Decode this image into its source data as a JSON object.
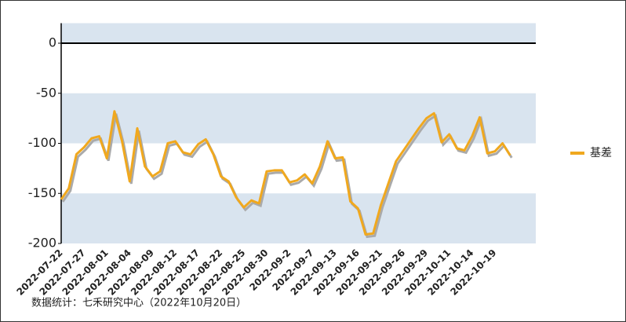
{
  "chart_data": {
    "type": "line",
    "footer": "数据统计：七禾研究中心（2022年10月20日）",
    "categories": [
      "2022-07-22",
      null,
      null,
      "2022-07-27",
      null,
      null,
      "2022-08-01",
      null,
      null,
      "2022-08-04",
      null,
      null,
      "2022-08-09",
      null,
      null,
      "2022-08-12",
      null,
      null,
      "2022-08-17",
      null,
      null,
      "2022-08-22",
      null,
      null,
      "2022-08-25",
      null,
      null,
      "2022-08-30",
      null,
      null,
      "2022-09-2",
      null,
      null,
      "2022-09-7",
      null,
      null,
      "2022-09-13",
      null,
      null,
      "2022-09-16",
      null,
      null,
      "2022-09-21",
      null,
      null,
      "2022-09-26",
      null,
      null,
      "2022-09-29",
      null,
      null,
      "2022-10-11",
      null,
      null,
      "2022-10-14",
      null,
      null,
      "2022-10-19",
      null,
      null
    ],
    "series": [
      {
        "name": "基差",
        "color": "#f0a81e",
        "values": [
          -156,
          -145,
          -111,
          -104,
          -95,
          -93,
          -115,
          -68,
          -98,
          -138,
          -85,
          -123,
          -133,
          -128,
          -100,
          -98,
          -109,
          -111,
          -101,
          -96,
          -111,
          -133,
          -138,
          -154,
          -164,
          -157,
          -160,
          -128,
          -127,
          -127,
          -139,
          -137,
          -131,
          -140,
          -123,
          -98,
          -115,
          -114,
          -158,
          -165,
          -191,
          -190,
          -162,
          -140,
          -118,
          -107,
          -96,
          -85,
          -75,
          -70,
          -99,
          -91,
          -105,
          -107,
          -93,
          -74,
          -110,
          -108,
          -100,
          -112
        ]
      }
    ],
    "ylim": [
      -200,
      20
    ],
    "yticks": [
      0,
      -50,
      -100,
      -150,
      -200
    ],
    "band_color": "#d9e4ef",
    "legend": "right"
  }
}
